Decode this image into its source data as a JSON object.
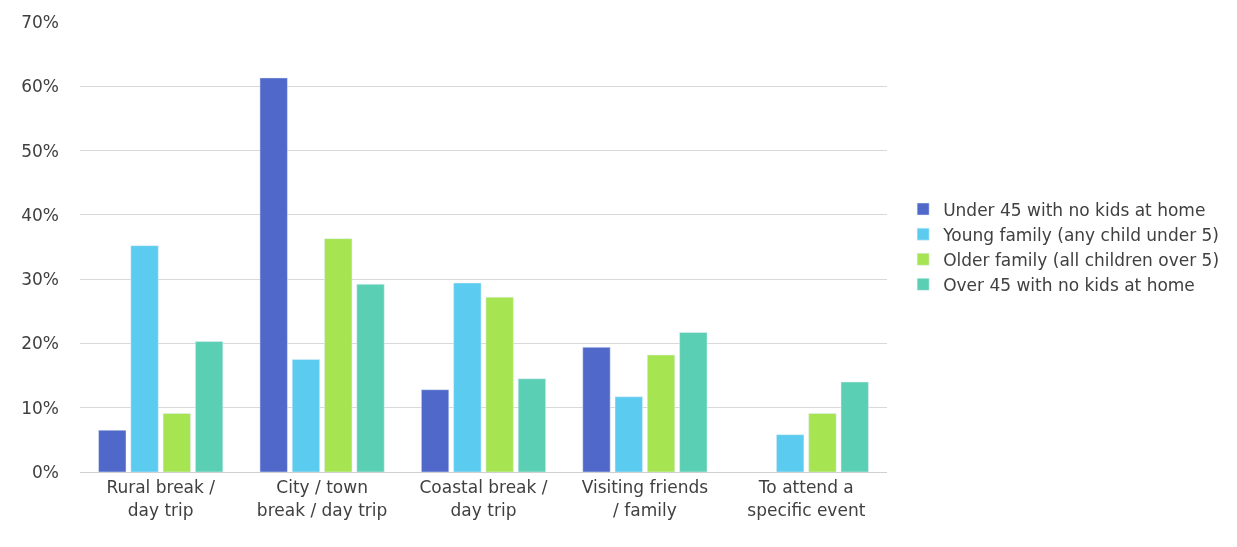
{
  "chart_data": {
    "type": "bar",
    "categories": [
      "Rural break /\nday trip",
      "City / town\nbreak / day trip",
      "Coastal break /\nday trip",
      "Visiting friends\n/ family",
      "To attend a\nspecific event"
    ],
    "series": [
      {
        "name": "Under 45 with no kids at home",
        "color": "#4f68c9",
        "values": [
          6.5,
          61.3,
          12.8,
          19.4,
          null
        ]
      },
      {
        "name": "Young family (any child under 5)",
        "color": "#5bcbf0",
        "values": [
          35.2,
          17.5,
          29.4,
          11.7,
          5.8
        ]
      },
      {
        "name": "Older family (all children over 5)",
        "color": "#a6e551",
        "values": [
          9.1,
          36.3,
          27.2,
          18.2,
          9.1
        ]
      },
      {
        "name": "Over 45 with no kids at home",
        "color": "#5bcfb3",
        "values": [
          20.3,
          29.2,
          14.5,
          21.7,
          14.0
        ]
      }
    ],
    "ylim": [
      0,
      70
    ],
    "yticks": [
      {
        "value": 0,
        "label": "0%"
      },
      {
        "value": 10,
        "label": "10%"
      },
      {
        "value": 20,
        "label": "20%"
      },
      {
        "value": 30,
        "label": "30%"
      },
      {
        "value": 40,
        "label": "40%"
      },
      {
        "value": 50,
        "label": "50%"
      },
      {
        "value": 60,
        "label": "60%"
      },
      {
        "value": 70,
        "label": "70%"
      }
    ],
    "grid": "y",
    "legend": "right"
  }
}
